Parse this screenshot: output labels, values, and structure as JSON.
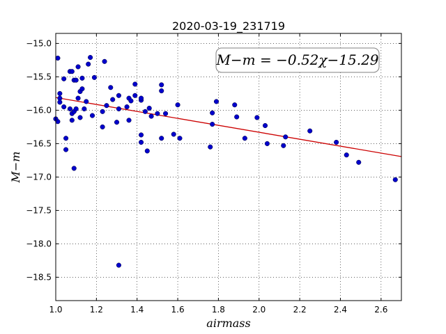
{
  "chart_data": {
    "type": "scatter",
    "title": "2020-03-19_231719",
    "xlabel": "airmass",
    "ylabel": "M−m",
    "xlim": [
      1.0,
      2.7
    ],
    "ylim": [
      -14.85,
      -18.85
    ],
    "xticks": [
      1.0,
      1.2,
      1.4,
      1.6,
      1.8,
      2.0,
      2.2,
      2.4,
      2.6
    ],
    "xtick_labels": [
      "1.0",
      "1.2",
      "1.4",
      "1.6",
      "1.8",
      "2.0",
      "2.2",
      "2.4",
      "2.6"
    ],
    "yticks": [
      -15.0,
      -15.5,
      -16.0,
      -16.5,
      -17.0,
      -17.5,
      -18.0,
      -18.5
    ],
    "ytick_labels": [
      "−15.0",
      "−15.5",
      "−16.0",
      "−16.5",
      "−17.0",
      "−17.5",
      "−18.0",
      "−18.5"
    ],
    "grid": true,
    "annotation": "M−m = −0.52χ−15.29",
    "fit": {
      "slope": -0.52,
      "intercept": -15.29,
      "color": "#cc0000"
    },
    "point_color": "#0000cc",
    "points": [
      [
        1.01,
        -15.22
      ],
      [
        1.01,
        -16.17
      ],
      [
        1.0,
        -16.13
      ],
      [
        1.02,
        -15.75
      ],
      [
        1.02,
        -15.82
      ],
      [
        1.02,
        -15.88
      ],
      [
        1.04,
        -15.95
      ],
      [
        1.04,
        -15.53
      ],
      [
        1.05,
        -16.59
      ],
      [
        1.05,
        -16.42
      ],
      [
        1.07,
        -15.42
      ],
      [
        1.07,
        -15.98
      ],
      [
        1.08,
        -15.42
      ],
      [
        1.08,
        -16.05
      ],
      [
        1.08,
        -16.15
      ],
      [
        1.09,
        -16.02
      ],
      [
        1.09,
        -15.55
      ],
      [
        1.1,
        -15.55
      ],
      [
        1.09,
        -16.87
      ],
      [
        1.1,
        -15.98
      ],
      [
        1.11,
        -15.82
      ],
      [
        1.11,
        -15.35
      ],
      [
        1.12,
        -16.11
      ],
      [
        1.12,
        -15.72
      ],
      [
        1.13,
        -15.68
      ],
      [
        1.13,
        -15.52
      ],
      [
        1.14,
        -15.98
      ],
      [
        1.15,
        -15.87
      ],
      [
        1.16,
        -15.31
      ],
      [
        1.17,
        -15.21
      ],
      [
        1.18,
        -16.08
      ],
      [
        1.19,
        -15.51
      ],
      [
        1.23,
        -16.25
      ],
      [
        1.23,
        -16.02
      ],
      [
        1.24,
        -15.27
      ],
      [
        1.25,
        -15.93
      ],
      [
        1.27,
        -15.66
      ],
      [
        1.28,
        -15.84
      ],
      [
        1.3,
        -16.18
      ],
      [
        1.31,
        -15.98
      ],
      [
        1.31,
        -15.78
      ],
      [
        1.31,
        -18.32
      ],
      [
        1.35,
        -15.95
      ],
      [
        1.36,
        -15.82
      ],
      [
        1.36,
        -16.15
      ],
      [
        1.37,
        -15.86
      ],
      [
        1.39,
        -15.78
      ],
      [
        1.39,
        -15.61
      ],
      [
        1.42,
        -15.85
      ],
      [
        1.42,
        -16.37
      ],
      [
        1.42,
        -16.48
      ],
      [
        1.42,
        -15.82
      ],
      [
        1.44,
        -16.02
      ],
      [
        1.45,
        -16.61
      ],
      [
        1.46,
        -15.97
      ],
      [
        1.47,
        -16.09
      ],
      [
        1.5,
        -16.05
      ],
      [
        1.52,
        -15.71
      ],
      [
        1.52,
        -15.62
      ],
      [
        1.52,
        -16.42
      ],
      [
        1.54,
        -16.05
      ],
      [
        1.58,
        -16.36
      ],
      [
        1.6,
        -15.92
      ],
      [
        1.61,
        -16.42
      ],
      [
        1.76,
        -16.55
      ],
      [
        1.77,
        -16.21
      ],
      [
        1.77,
        -16.04
      ],
      [
        1.79,
        -15.87
      ],
      [
        1.88,
        -15.92
      ],
      [
        1.89,
        -16.1
      ],
      [
        1.93,
        -16.42
      ],
      [
        1.99,
        -16.11
      ],
      [
        2.03,
        -16.23
      ],
      [
        2.04,
        -16.5
      ],
      [
        2.12,
        -16.53
      ],
      [
        2.13,
        -16.4
      ],
      [
        2.25,
        -16.31
      ],
      [
        2.38,
        -16.48
      ],
      [
        2.43,
        -16.67
      ],
      [
        2.49,
        -16.78
      ],
      [
        2.67,
        -17.04
      ]
    ]
  }
}
